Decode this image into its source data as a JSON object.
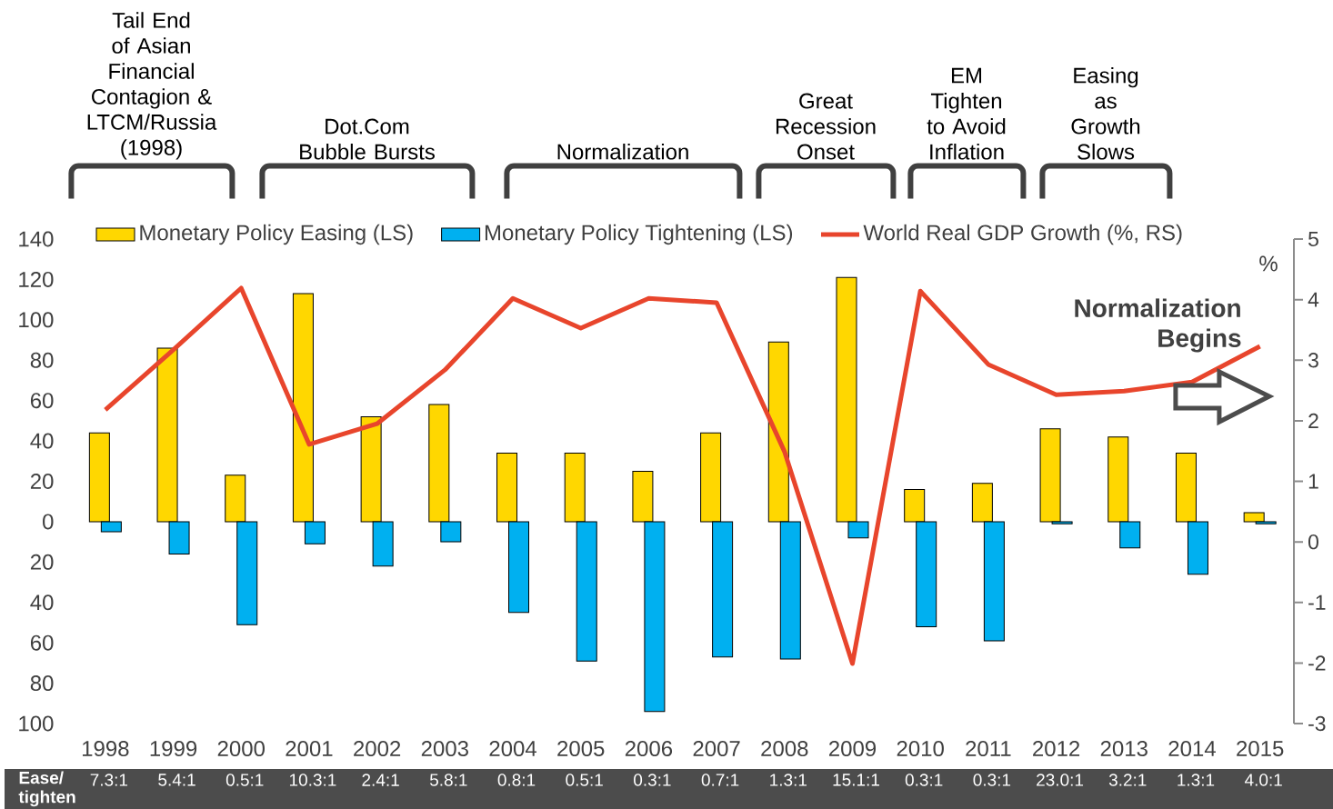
{
  "chart_data": {
    "type": "bar",
    "categories": [
      "1998",
      "1999",
      "2000",
      "2001",
      "2002",
      "2003",
      "2004",
      "2005",
      "2006",
      "2007",
      "2008",
      "2009",
      "2010",
      "2011",
      "2012",
      "2013",
      "2014",
      "2015"
    ],
    "series": [
      {
        "name": "Monetary Policy Easing (LS)",
        "color": "#ffd700",
        "values": [
          44,
          86,
          23,
          113,
          52,
          58,
          34,
          34,
          25,
          44,
          89,
          121,
          16,
          19,
          46,
          42,
          34,
          4.5
        ]
      },
      {
        "name": "Monetary Policy Tightening (LS)",
        "color": "#00b0f0",
        "values": [
          -5,
          -16,
          -51,
          -11,
          -22,
          -10,
          -45,
          -69,
          -94,
          -67,
          -68,
          -8,
          -52,
          -59,
          -1,
          -13,
          -26,
          -1
        ]
      },
      {
        "name": "World Real GDP Growth (%, RS)",
        "type": "line",
        "axis": "y2",
        "color": "#e8452c",
        "values": [
          2.18,
          3.17,
          4.19,
          1.61,
          1.95,
          2.84,
          4.02,
          3.53,
          4.02,
          3.95,
          1.49,
          -2.01,
          4.14,
          2.93,
          2.43,
          2.49,
          2.64,
          3.23
        ]
      }
    ],
    "ylim": [
      -100,
      140
    ],
    "yticks": [
      {
        "value": -100,
        "label": "100"
      },
      {
        "value": -80,
        "label": "80"
      },
      {
        "value": -60,
        "label": "60"
      },
      {
        "value": -40,
        "label": "40"
      },
      {
        "value": -20,
        "label": "20"
      },
      0,
      20,
      40,
      60,
      80,
      100,
      120,
      140
    ],
    "y2lim": [
      -3,
      5
    ],
    "y2ticks": [
      -3,
      -2,
      -1,
      0,
      1,
      2,
      3,
      4,
      5
    ],
    "y2label": "%",
    "legend": "top",
    "annotations": [
      "Tail End of Asian Financial Contagion & LTCM/Russia (1998)",
      "Dot.Com Bubble Bursts",
      "Normalization",
      "Great Recession Onset",
      "EM Tighten to Avoid Inflation",
      "Easing as Growth Slows",
      "Normalization Begins",
      "Ease/ tighten",
      "7.3:1",
      "5.4:1",
      "0.5:1",
      "10.3:1",
      "2.4:1",
      "5.8:1",
      "0.8:1",
      "0.5:1",
      "0.3:1",
      "0.7:1",
      "1.3:1",
      "15.1:1",
      "0.3:1",
      "0.3:1",
      "23.0:1",
      "3.2:1",
      "1.3:1",
      "4.0:1"
    ]
  }
}
